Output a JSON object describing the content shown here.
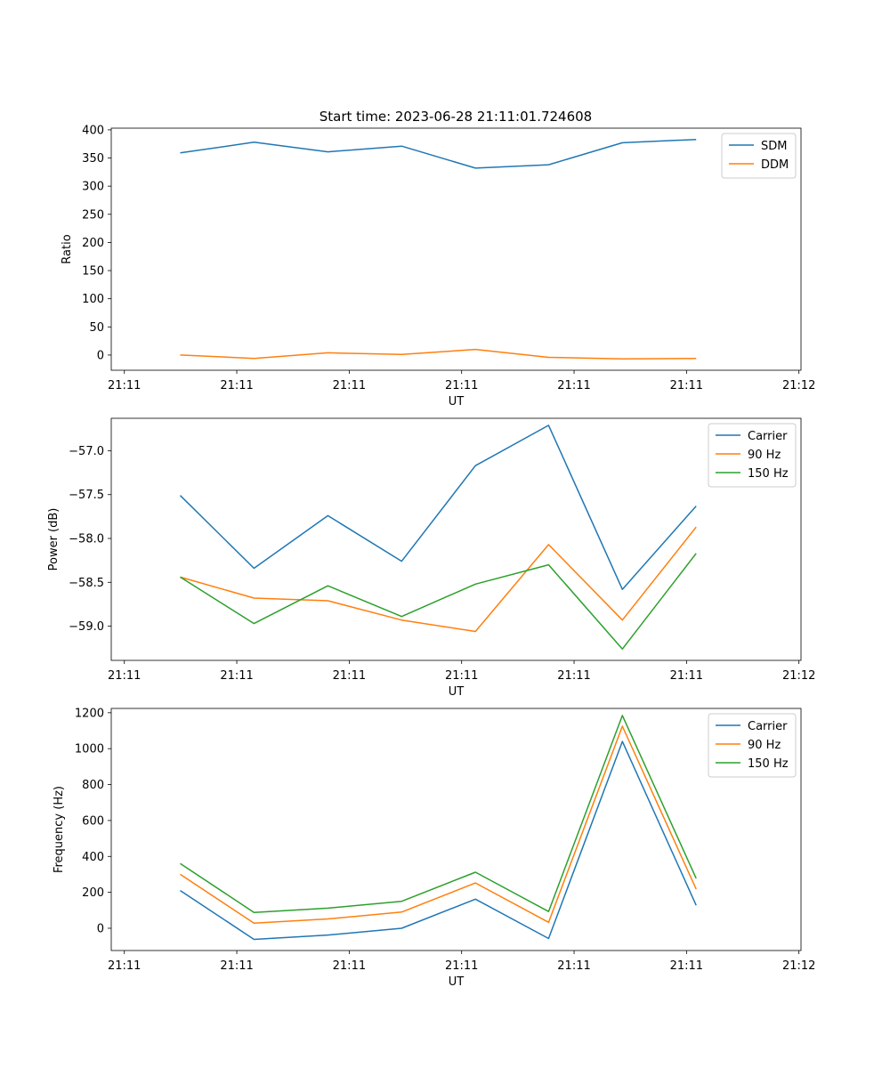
{
  "figure": {
    "title": "Start time: 2023-06-28 21:11:01.724608"
  },
  "colors": {
    "blue": "#1f77b4",
    "orange": "#ff7f0e",
    "green": "#2ca02c"
  },
  "chart_data": [
    {
      "type": "line",
      "xlabel": "UT",
      "ylabel": "Ratio",
      "xtick_labels": [
        "21:11",
        "21:11",
        "21:11",
        "21:11",
        "21:11",
        "21:11",
        "21:12"
      ],
      "yticks": [
        0,
        50,
        100,
        150,
        200,
        250,
        300,
        350,
        400
      ],
      "ytick_labels": [
        "0",
        "50",
        "100",
        "150",
        "200",
        "250",
        "300",
        "350",
        "400"
      ],
      "ylim": [
        -27,
        403
      ],
      "legend": "upper right",
      "series": [
        {
          "name": "SDM",
          "color": "#1f77b4",
          "values": [
            359,
            378,
            361,
            371,
            332,
            338,
            377,
            383
          ]
        },
        {
          "name": "DDM",
          "color": "#ff7f0e",
          "values": [
            0,
            -6,
            4,
            1,
            10,
            -4,
            -7,
            -6
          ]
        }
      ]
    },
    {
      "type": "line",
      "xlabel": "UT",
      "ylabel": "Power (dB)",
      "xtick_labels": [
        "21:11",
        "21:11",
        "21:11",
        "21:11",
        "21:11",
        "21:11",
        "21:12"
      ],
      "yticks": [
        -57.0,
        -57.5,
        -58.0,
        -58.5,
        -59.0
      ],
      "ytick_labels": [
        "−57.0",
        "−57.5",
        "−58.0",
        "−58.5",
        "−59.0"
      ],
      "ylim": [
        -59.39,
        -56.63
      ],
      "legend": "upper right",
      "series": [
        {
          "name": "Carrier",
          "color": "#1f77b4",
          "values": [
            -57.51,
            -58.34,
            -57.74,
            -58.26,
            -57.17,
            -56.71,
            -58.58,
            -57.63
          ]
        },
        {
          "name": "90 Hz",
          "color": "#ff7f0e",
          "values": [
            -58.44,
            -58.68,
            -58.71,
            -58.93,
            -59.06,
            -58.07,
            -58.93,
            -57.87
          ]
        },
        {
          "name": "150 Hz",
          "color": "#2ca02c",
          "values": [
            -58.44,
            -58.97,
            -58.54,
            -58.89,
            -58.52,
            -58.3,
            -59.26,
            -58.17
          ]
        }
      ]
    },
    {
      "type": "line",
      "xlabel": "UT",
      "ylabel": "Frequency (Hz)",
      "xtick_labels": [
        "21:11",
        "21:11",
        "21:11",
        "21:11",
        "21:11",
        "21:11",
        "21:12"
      ],
      "yticks": [
        0,
        200,
        400,
        600,
        800,
        1000,
        1200
      ],
      "ytick_labels": [
        "0",
        "200",
        "400",
        "600",
        "800",
        "1000",
        "1200"
      ],
      "ylim": [
        -124,
        1224
      ],
      "legend": "upper right",
      "series": [
        {
          "name": "Carrier",
          "color": "#1f77b4",
          "values": [
            210,
            -62,
            -38,
            0,
            162,
            -57,
            1040,
            128
          ]
        },
        {
          "name": "90 Hz",
          "color": "#ff7f0e",
          "values": [
            300,
            28,
            52,
            90,
            252,
            33,
            1125,
            218
          ]
        },
        {
          "name": "150 Hz",
          "color": "#2ca02c",
          "values": [
            360,
            88,
            112,
            150,
            312,
            93,
            1185,
            278
          ]
        }
      ]
    }
  ]
}
